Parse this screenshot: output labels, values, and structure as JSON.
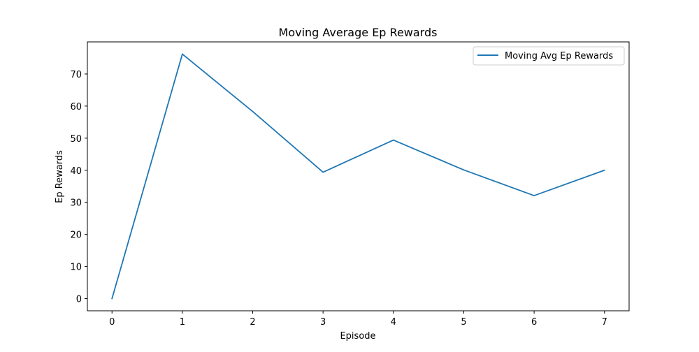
{
  "chart_data": {
    "type": "line",
    "title": "Moving Average Ep Rewards",
    "xlabel": "Episode",
    "ylabel": "Ep Rewards",
    "x": [
      0,
      1,
      2,
      3,
      4,
      5,
      6,
      7
    ],
    "series": [
      {
        "name": "Moving Avg Ep Rewards",
        "values": [
          0,
          76.2,
          58.3,
          39.4,
          49.4,
          40.1,
          32.1,
          40.0
        ],
        "color": "#1f77b4"
      }
    ],
    "xlim": [
      -0.35,
      7.35
    ],
    "ylim": [
      -3.8,
      80.0
    ],
    "xticks": [
      0,
      1,
      2,
      3,
      4,
      5,
      6,
      7
    ],
    "yticks": [
      0,
      10,
      20,
      30,
      40,
      50,
      60,
      70
    ],
    "grid": false,
    "legend_position": "top-right"
  }
}
